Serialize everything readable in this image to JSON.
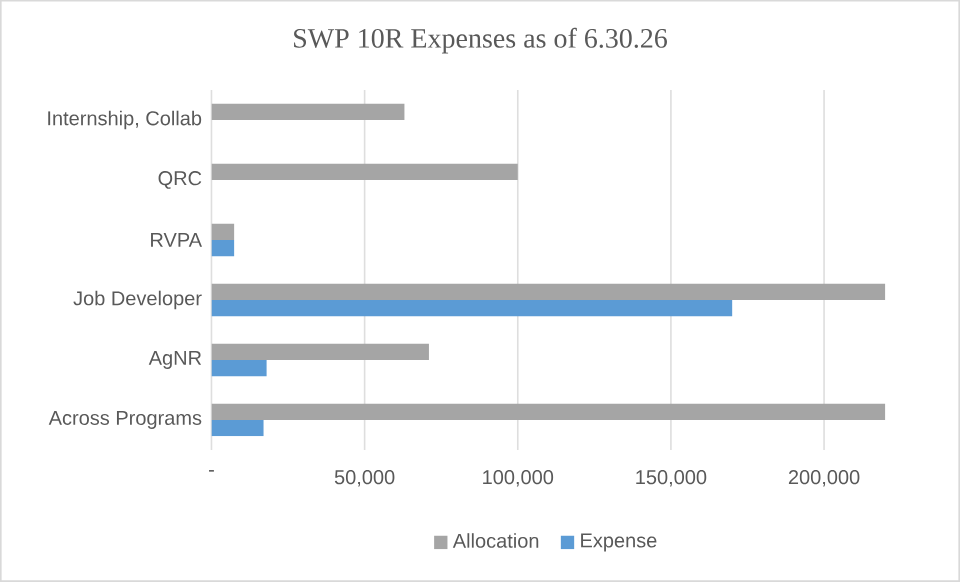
{
  "chart_data": {
    "type": "bar",
    "orientation": "horizontal",
    "title": "SWP 10R Expenses as of 6.30.26",
    "categories": [
      "Internship, Collab",
      "QRC",
      "RVPA",
      "Job Developer",
      "AgNR",
      "Across Programs"
    ],
    "series": [
      {
        "name": "Allocation",
        "color": "#a5a5a5",
        "values": [
          63000,
          100000,
          7400,
          220000,
          71000,
          220000
        ]
      },
      {
        "name": "Expense",
        "color": "#5b9bd5",
        "values": [
          null,
          null,
          7400,
          170000,
          18000,
          17000
        ]
      }
    ],
    "xlim": [
      0,
      220000
    ],
    "xticks": [
      {
        "value": 0,
        "label": "-"
      },
      {
        "value": 50000,
        "label": "50,000"
      },
      {
        "value": 100000,
        "label": "100,000"
      },
      {
        "value": 150000,
        "label": "150,000"
      },
      {
        "value": 200000,
        "label": "200,000"
      }
    ],
    "grid": "x",
    "legend": "bottom"
  }
}
